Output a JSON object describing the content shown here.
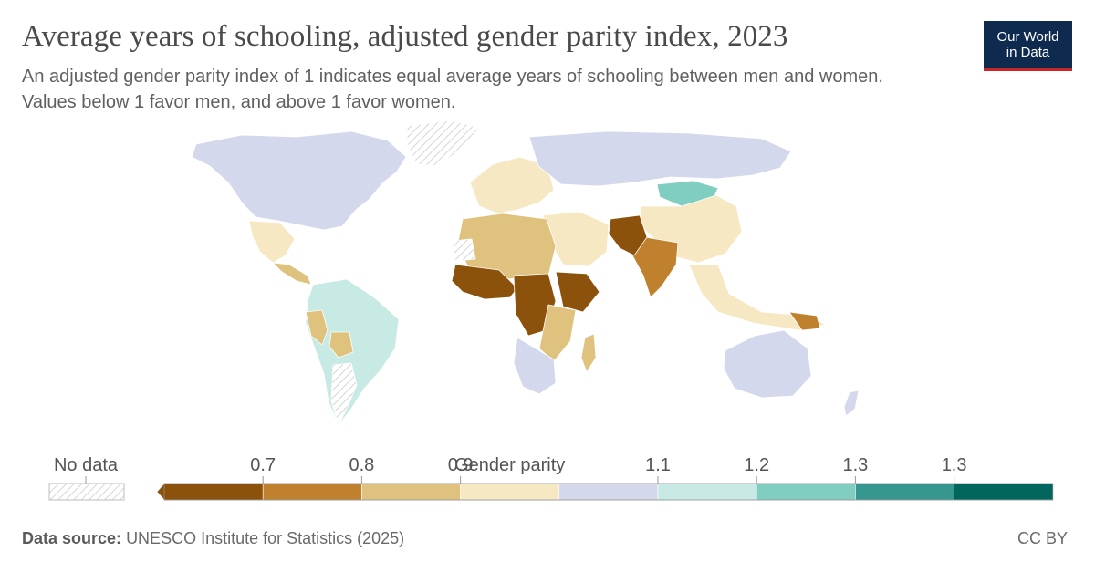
{
  "header": {
    "title": "Average years of schooling, adjusted gender parity index, 2023",
    "subtitle": "An adjusted gender parity index of 1 indicates equal average years of schooling between men and women. Values below 1 favor men, and above 1 favor women."
  },
  "logo": {
    "line1": "Our World",
    "line2": "in Data"
  },
  "legend": {
    "no_data_label": "No data",
    "tick_labels": [
      "0.7",
      "0.8",
      "0.9",
      "Gender parity",
      "1.1",
      "1.2",
      "1.3",
      "1.3"
    ],
    "bins": [
      {
        "color": "#8c510a"
      },
      {
        "color": "#bf812d"
      },
      {
        "color": "#dfc27d"
      },
      {
        "color": "#f6e8c3"
      },
      {
        "color": "#d4d8ec"
      },
      {
        "color": "#c7eae5"
      },
      {
        "color": "#80cdc1"
      },
      {
        "color": "#35978f"
      },
      {
        "color": "#01665e"
      }
    ],
    "no_data_color": "#e6e6e6"
  },
  "map_regions": [
    {
      "name": "North America",
      "color": "#d4d8ec"
    },
    {
      "name": "Greenland",
      "color": "no-data"
    },
    {
      "name": "Mexico",
      "color": "#f6e8c3"
    },
    {
      "name": "Central America",
      "color": "#dfc27d"
    },
    {
      "name": "South America",
      "color": "#c7eae5"
    },
    {
      "name": "Peru",
      "color": "#dfc27d"
    },
    {
      "name": "Bolivia",
      "color": "#dfc27d"
    },
    {
      "name": "Argentina",
      "color": "no-data"
    },
    {
      "name": "Europe",
      "color": "#f6e8c3"
    },
    {
      "name": "Russia",
      "color": "#d4d8ec"
    },
    {
      "name": "Mongolia",
      "color": "#80cdc1"
    },
    {
      "name": "China",
      "color": "#f6e8c3"
    },
    {
      "name": "Middle East",
      "color": "#f6e8c3"
    },
    {
      "name": "South Asia",
      "color": "#bf812d"
    },
    {
      "name": "Afghanistan / Pakistan",
      "color": "#8c510a"
    },
    {
      "name": "Southeast Asia",
      "color": "#f6e8c3"
    },
    {
      "name": "North Africa",
      "color": "#dfc27d"
    },
    {
      "name": "Western Sahara",
      "color": "no-data"
    },
    {
      "name": "West Africa",
      "color": "#8c510a"
    },
    {
      "name": "Central Africa",
      "color": "#8c510a"
    },
    {
      "name": "Horn of Africa",
      "color": "#8c510a"
    },
    {
      "name": "East Africa",
      "color": "#dfc27d"
    },
    {
      "name": "Southern Africa",
      "color": "#d4d8ec"
    },
    {
      "name": "Madagascar",
      "color": "#dfc27d"
    },
    {
      "name": "Australia",
      "color": "#d4d8ec"
    },
    {
      "name": "Papua New Guinea",
      "color": "#bf812d"
    },
    {
      "name": "New Zealand",
      "color": "#d4d8ec"
    }
  ],
  "footer": {
    "source_label": "Data source:",
    "source_text": "UNESCO Institute for Statistics (2025)",
    "license": "CC BY"
  }
}
